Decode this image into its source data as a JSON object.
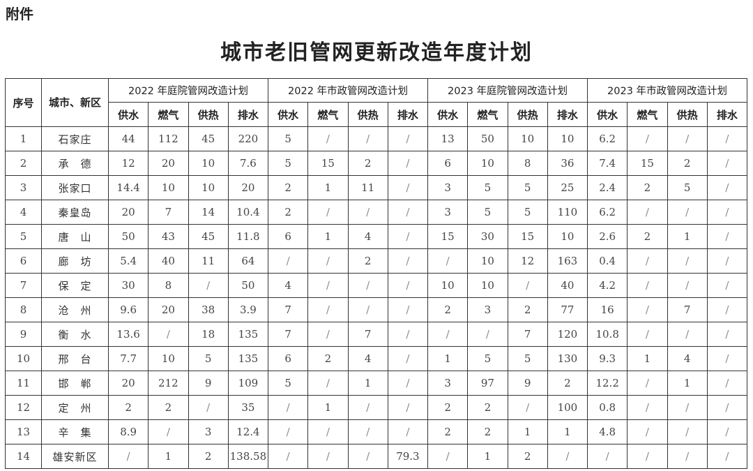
{
  "attachment_label": "附件",
  "title": "城市老旧管网更新改造年度计划",
  "table": {
    "col_seq": "序号",
    "col_city": "城市、新区",
    "groups": [
      "2022 年庭院管网改造计划",
      "2022 年市政管网改造计划",
      "2023 年庭院管网改造计划",
      "2023 年市政管网改造计划"
    ],
    "subcols": [
      "供水",
      "燃气",
      "供热",
      "排水"
    ],
    "rows": [
      {
        "seq": "1",
        "city": "石家庄",
        "values": [
          "44",
          "112",
          "45",
          "220",
          "5",
          "/",
          "/",
          "/",
          "13",
          "50",
          "10",
          "10",
          "6.2",
          "/",
          "/",
          "/"
        ]
      },
      {
        "seq": "2",
        "city": "承　德",
        "values": [
          "12",
          "20",
          "10",
          "7.6",
          "5",
          "15",
          "2",
          "/",
          "6",
          "10",
          "8",
          "36",
          "7.4",
          "15",
          "2",
          "/"
        ]
      },
      {
        "seq": "3",
        "city": "张家口",
        "values": [
          "14.4",
          "10",
          "10",
          "20",
          "2",
          "1",
          "11",
          "/",
          "3",
          "5",
          "5",
          "25",
          "2.4",
          "2",
          "5",
          "/"
        ]
      },
      {
        "seq": "4",
        "city": "秦皇岛",
        "values": [
          "20",
          "7",
          "14",
          "10.4",
          "2",
          "/",
          "/",
          "/",
          "3",
          "5",
          "5",
          "110",
          "6.2",
          "/",
          "/",
          "/"
        ]
      },
      {
        "seq": "5",
        "city": "唐　山",
        "values": [
          "50",
          "43",
          "45",
          "11.8",
          "6",
          "1",
          "4",
          "/",
          "15",
          "30",
          "15",
          "10",
          "2.6",
          "2",
          "1",
          "/"
        ]
      },
      {
        "seq": "6",
        "city": "廊　坊",
        "values": [
          "5.4",
          "40",
          "11",
          "64",
          "/",
          "/",
          "2",
          "/",
          "/",
          "10",
          "12",
          "163",
          "0.4",
          "/",
          "/",
          "/"
        ]
      },
      {
        "seq": "7",
        "city": "保　定",
        "values": [
          "30",
          "8",
          "/",
          "50",
          "4",
          "/",
          "/",
          "/",
          "10",
          "10",
          "/",
          "40",
          "4.2",
          "/",
          "/",
          "/"
        ]
      },
      {
        "seq": "8",
        "city": "沧　州",
        "values": [
          "9.6",
          "20",
          "38",
          "3.9",
          "7",
          "/",
          "/",
          "/",
          "2",
          "3",
          "2",
          "77",
          "16",
          "/",
          "7",
          "/"
        ]
      },
      {
        "seq": "9",
        "city": "衡　水",
        "values": [
          "13.6",
          "/",
          "18",
          "135",
          "7",
          "/",
          "7",
          "/",
          "/",
          "/",
          "7",
          "120",
          "10.8",
          "/",
          "/",
          "/"
        ]
      },
      {
        "seq": "10",
        "city": "邢　台",
        "values": [
          "7.7",
          "10",
          "5",
          "135",
          "6",
          "2",
          "4",
          "/",
          "1",
          "5",
          "5",
          "130",
          "9.3",
          "1",
          "4",
          "/"
        ]
      },
      {
        "seq": "11",
        "city": "邯　郸",
        "values": [
          "20",
          "212",
          "9",
          "109",
          "5",
          "/",
          "1",
          "/",
          "3",
          "97",
          "9",
          "2",
          "12.2",
          "/",
          "1",
          "/"
        ]
      },
      {
        "seq": "12",
        "city": "定　州",
        "values": [
          "2",
          "2",
          "/",
          "35",
          "/",
          "1",
          "/",
          "/",
          "2",
          "2",
          "/",
          "100",
          "0.8",
          "/",
          "/",
          "/"
        ]
      },
      {
        "seq": "13",
        "city": "辛　集",
        "values": [
          "8.9",
          "/",
          "3",
          "12.4",
          "/",
          "/",
          "/",
          "/",
          "2",
          "2",
          "1",
          "1",
          "4.8",
          "/",
          "/",
          "/"
        ]
      },
      {
        "seq": "14",
        "city": "雄安新区",
        "values": [
          "/",
          "1",
          "2",
          "138.58",
          "/",
          "/",
          "/",
          "79.3",
          "/",
          "1",
          "2",
          "/",
          "/",
          "/",
          "/",
          "/"
        ]
      }
    ]
  }
}
